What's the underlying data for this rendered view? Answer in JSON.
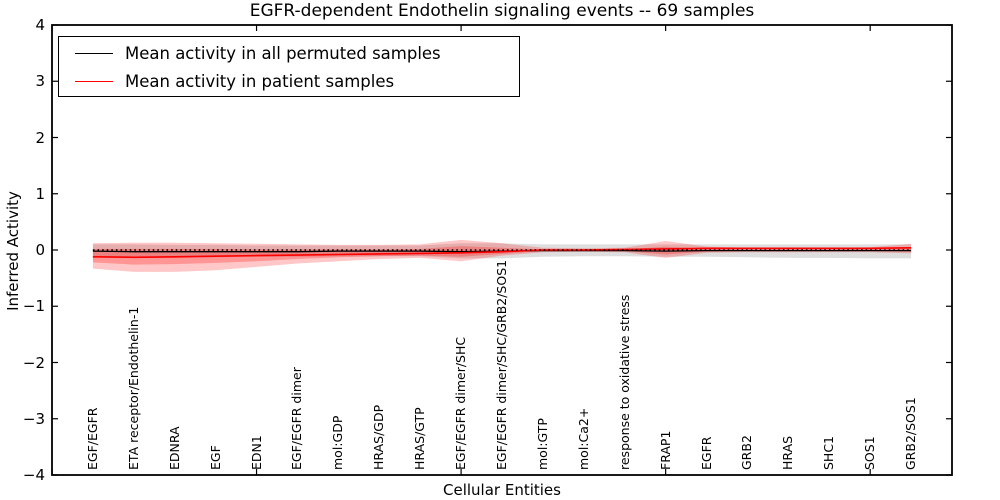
{
  "chart_data": {
    "type": "line",
    "title": "EGFR-dependent Endothelin signaling events -- 69 samples",
    "xlabel": "Cellular Entities",
    "ylabel": "Inferred Activity",
    "ylim": [
      -4,
      4
    ],
    "yticks": [
      4,
      3,
      2,
      1,
      0,
      -1,
      -2,
      -3,
      -4
    ],
    "xlim": [
      0,
      22
    ],
    "xticks": [
      0,
      5,
      10,
      15,
      20
    ],
    "grid": false,
    "legend_position": "upper left",
    "categories": [
      "EGF/EGFR",
      "ETA receptor/Endothelin-1",
      "EDNRA",
      "EGF",
      "EDN1",
      "EGF/EGFR dimer",
      "mol:GDP",
      "HRAS/GDP",
      "HRAS/GTP",
      "EGF/EGFR dimer/SHC",
      "EGF/EGFR dimer/SHC/GRB2/SOS1",
      "mol:GTP",
      "mol:Ca2+",
      "response to oxidative stress",
      "FRAP1",
      "EGFR",
      "GRB2",
      "HRAS",
      "SHC1",
      "SOS1",
      "GRB2/SOS1"
    ],
    "series": [
      {
        "name": "Mean activity in all permuted samples",
        "color": "#000000",
        "style": "solid",
        "values": [
          -0.02,
          -0.03,
          -0.03,
          -0.03,
          -0.03,
          -0.03,
          -0.02,
          -0.02,
          -0.02,
          -0.03,
          -0.02,
          -0.01,
          -0.01,
          -0.01,
          -0.02,
          -0.01,
          -0.01,
          -0.01,
          -0.01,
          -0.01,
          -0.01
        ]
      },
      {
        "name": "Mean activity in patient samples",
        "color": "#ff0000",
        "style": "solid",
        "values": [
          -0.12,
          -0.13,
          -0.12,
          -0.11,
          -0.1,
          -0.09,
          -0.08,
          -0.07,
          -0.06,
          -0.05,
          -0.03,
          0.0,
          0.0,
          0.01,
          0.02,
          0.03,
          0.03,
          0.03,
          0.03,
          0.03,
          0.04
        ]
      }
    ],
    "zero_reference_line": {
      "value": 0,
      "color": "#000000",
      "style": "dotted"
    },
    "bands": [
      {
        "name": "permuted-samples-range",
        "color": "rgba(0,0,0,0.13)",
        "top": [
          0.1,
          0.1,
          0.09,
          0.09,
          0.08,
          0.08,
          0.08,
          0.08,
          0.08,
          0.12,
          0.12,
          0.1,
          0.1,
          0.1,
          0.1,
          0.1,
          0.1,
          0.1,
          0.1,
          0.1,
          0.1
        ],
        "bottom": [
          -0.13,
          -0.14,
          -0.14,
          -0.13,
          -0.12,
          -0.12,
          -0.11,
          -0.11,
          -0.11,
          -0.15,
          -0.15,
          -0.12,
          -0.11,
          -0.11,
          -0.12,
          -0.12,
          -0.13,
          -0.14,
          -0.14,
          -0.15,
          -0.15
        ]
      },
      {
        "name": "patient-samples-range-outer",
        "color": "rgba(255,0,0,0.22)",
        "top": [
          0.12,
          0.13,
          0.13,
          0.12,
          0.11,
          0.1,
          0.09,
          0.09,
          0.1,
          0.18,
          0.12,
          0.04,
          0.03,
          0.04,
          0.16,
          0.06,
          0.04,
          0.04,
          0.04,
          0.05,
          0.11
        ],
        "bottom": [
          -0.33,
          -0.39,
          -0.39,
          -0.36,
          -0.3,
          -0.24,
          -0.2,
          -0.16,
          -0.14,
          -0.2,
          -0.1,
          -0.04,
          -0.03,
          -0.04,
          -0.14,
          -0.05,
          -0.04,
          -0.04,
          -0.04,
          -0.04,
          -0.06
        ]
      },
      {
        "name": "patient-samples-range-inner",
        "color": "rgba(255,0,0,0.25)",
        "top": [
          0.02,
          0.02,
          0.02,
          0.02,
          0.01,
          0.01,
          0.01,
          0.01,
          0.02,
          0.07,
          0.04,
          0.01,
          0.01,
          0.01,
          0.06,
          0.02,
          0.01,
          0.01,
          0.01,
          0.02,
          0.05
        ],
        "bottom": [
          -0.22,
          -0.26,
          -0.25,
          -0.23,
          -0.2,
          -0.16,
          -0.13,
          -0.11,
          -0.1,
          -0.12,
          -0.07,
          -0.02,
          -0.02,
          -0.02,
          -0.08,
          -0.03,
          -0.02,
          -0.02,
          -0.02,
          -0.02,
          -0.03
        ]
      }
    ]
  },
  "colors": {
    "axes": "#000000",
    "background": "#ffffff",
    "permuted_line": "#000000",
    "patient_line": "#ff0000"
  }
}
